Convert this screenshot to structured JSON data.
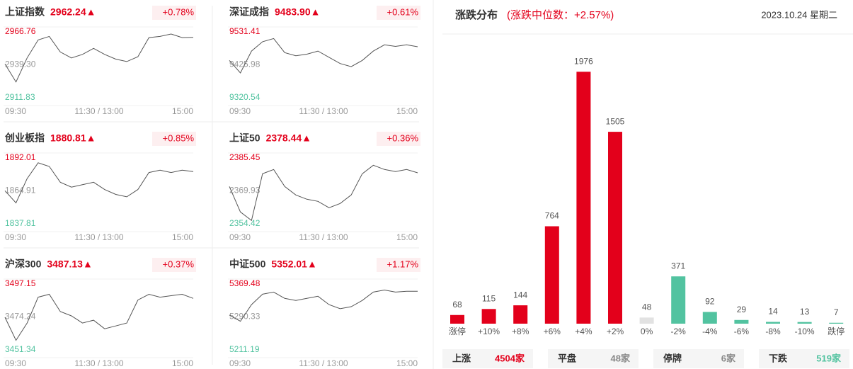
{
  "indices": [
    {
      "name": "上证指数",
      "price": "2962.24▲",
      "change": "+0.78%",
      "ylim": [
        2911.83,
        2966.76
      ],
      "yticks": [
        2966.76,
        {
          "value": 2939.3,
          "label": "2939.30"
        },
        2911.83
      ],
      "values": [
        2940,
        2925,
        2945,
        2960,
        2963,
        2950,
        2945,
        2948,
        2953,
        2948,
        2944,
        2942,
        2946,
        2962,
        2963,
        2965,
        2962,
        2962.24
      ]
    },
    {
      "name": "深证成指",
      "price": "9483.90▲",
      "change": "+0.61%",
      "ylim": [
        9320.54,
        9531.41
      ],
      "yticks": [
        9531.41,
        9425.98,
        9320.54
      ],
      "values": [
        9440,
        9400,
        9470,
        9500,
        9510,
        9465,
        9455,
        9460,
        9470,
        9450,
        9430,
        9420,
        9440,
        9470,
        9490,
        9485,
        9490,
        9483.9
      ]
    },
    {
      "name": "创业板指",
      "price": "1880.81▲",
      "change": "+0.85%",
      "ylim": [
        1837.81,
        1892.01
      ],
      "yticks": [
        1892.01,
        1864.91,
        1837.81
      ],
      "values": [
        1865,
        1855,
        1875,
        1888,
        1885,
        1872,
        1868,
        1870,
        1872,
        1866,
        1862,
        1860,
        1866,
        1880,
        1882,
        1880,
        1882,
        1880.81
      ]
    },
    {
      "name": "上证50",
      "price": "2378.44▲",
      "change": "+0.36%",
      "ylim": [
        2354.42,
        2385.45
      ],
      "yticks": [
        2385.45,
        2369.93,
        2354.42
      ],
      "values": [
        2372,
        2360,
        2356,
        2378,
        2380,
        2372,
        2368,
        2366,
        2365,
        2362,
        2364,
        2368,
        2378,
        2382,
        2380,
        2379,
        2380,
        2378.44
      ]
    },
    {
      "name": "沪深300",
      "price": "3487.13▲",
      "change": "+0.37%",
      "ylim": [
        3451.34,
        3497.15
      ],
      "yticks": [
        3497.15,
        3474.24,
        3451.34
      ],
      "values": [
        3474,
        3458,
        3470,
        3488,
        3490,
        3478,
        3475,
        3470,
        3472,
        3466,
        3468,
        3470,
        3486,
        3490,
        3488,
        3489,
        3490,
        3487.13
      ]
    },
    {
      "name": "中证500",
      "price": "5352.01▲",
      "change": "+1.17%",
      "ylim": [
        5211.19,
        5369.48
      ],
      "yticks": [
        5369.48,
        5290.33,
        5211.19
      ],
      "values": [
        5295,
        5280,
        5320,
        5345,
        5350,
        5335,
        5330,
        5335,
        5340,
        5320,
        5310,
        5315,
        5330,
        5350,
        5355,
        5350,
        5352,
        5352.01
      ]
    }
  ],
  "times": [
    "09:30",
    "11:30 / 13:00",
    "15:00"
  ],
  "chart_data": {
    "type": "bar",
    "title": "涨跌分布",
    "subtitle": "(涨跌中位数：+2.57%)",
    "date": "2023.10.24 星期二",
    "categories": [
      "涨停",
      "+10%",
      "+8%",
      "+6%",
      "+4%",
      "+2%",
      "0%",
      "-2%",
      "-4%",
      "-6%",
      "-8%",
      "-10%",
      "跌停"
    ],
    "values": [
      68,
      115,
      144,
      764,
      1976,
      1505,
      48,
      371,
      92,
      29,
      14,
      13,
      7
    ],
    "colors": [
      "#e3001b",
      "#e3001b",
      "#e3001b",
      "#e3001b",
      "#e3001b",
      "#e3001b",
      "#e2e2e2",
      "#52c3a0",
      "#52c3a0",
      "#52c3a0",
      "#52c3a0",
      "#52c3a0",
      "#52c3a0"
    ],
    "ylim": [
      0,
      2000
    ]
  },
  "summary": [
    {
      "label": "上涨",
      "value": "4504家"
    },
    {
      "label": "平盘",
      "value": "48家"
    },
    {
      "label": "停牌",
      "value": "6家"
    },
    {
      "label": "下跌",
      "value": "519家"
    }
  ]
}
